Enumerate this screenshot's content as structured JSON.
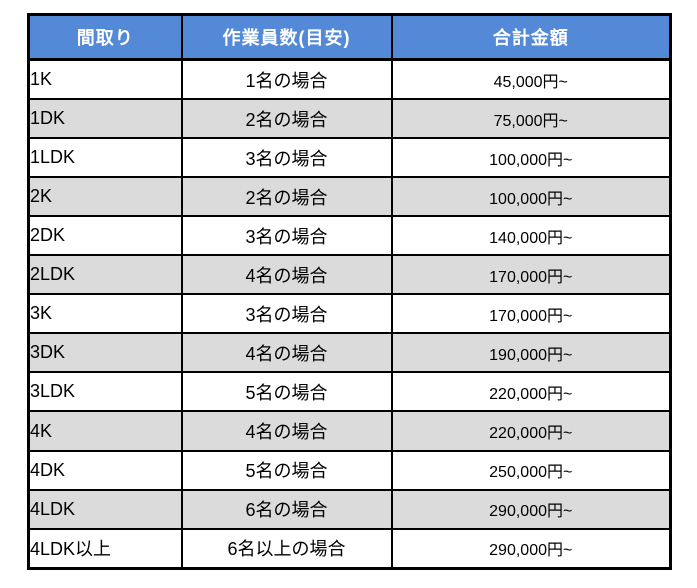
{
  "colors": {
    "header_bg": "#5389d6",
    "header_text": "#ffffff",
    "row_bg": "#ffffff",
    "row_alt_bg": "#dbdbdb",
    "border": "#000000",
    "cell_text": "#000000"
  },
  "chart_data": {
    "type": "table",
    "columns": [
      "間取り",
      "作業員数(目安)",
      "合計金額"
    ],
    "rows": [
      [
        "1K",
        "1名の場合",
        "45,000円~"
      ],
      [
        "1DK",
        "2名の場合",
        "75,000円~"
      ],
      [
        "1LDK",
        "3名の場合",
        "100,000円~"
      ],
      [
        "2K",
        "2名の場合",
        "100,000円~"
      ],
      [
        "2DK",
        "3名の場合",
        "140,000円~"
      ],
      [
        "2LDK",
        "4名の場合",
        "170,000円~"
      ],
      [
        "3K",
        "3名の場合",
        "170,000円~"
      ],
      [
        "3DK",
        "4名の場合",
        "190,000円~"
      ],
      [
        "3LDK",
        "5名の場合",
        "220,000円~"
      ],
      [
        "4K",
        "4名の場合",
        "220,000円~"
      ],
      [
        "4DK",
        "5名の場合",
        "250,000円~"
      ],
      [
        "4LDK",
        "6名の場合",
        "290,000円~"
      ],
      [
        "4LDK以上",
        "6名以上の場合",
        "290,000円~"
      ]
    ]
  }
}
